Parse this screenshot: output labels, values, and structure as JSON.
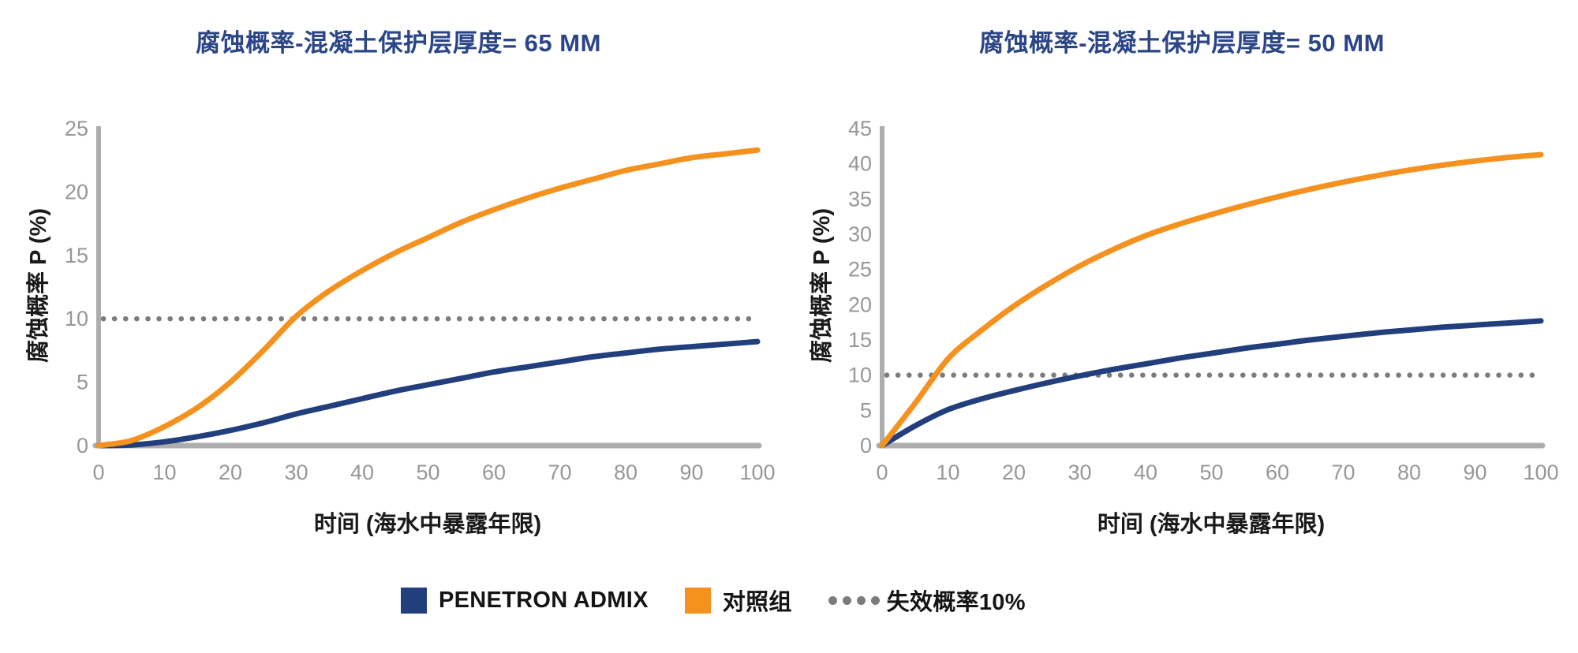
{
  "figure_background": "#ffffff",
  "colors": {
    "title": "#2b4586",
    "axis_line": "#adadad",
    "tick_label": "#979797",
    "axis_title": "#1a1a1a",
    "penetron_navy": "#223f7d",
    "control_orange": "#f5911e",
    "threshold_gray": "#7c7c7c"
  },
  "legend": {
    "items": [
      {
        "label": "PENETRON ADMIX",
        "swatch": "square",
        "color": "#223f7d"
      },
      {
        "label": "对照组",
        "swatch": "square",
        "color": "#f5911e"
      },
      {
        "label": "失效概率10%",
        "swatch": "dotted-line",
        "color": "#7c7c7c"
      }
    ]
  },
  "chart_data": [
    {
      "type": "line",
      "title": "腐蚀概率-混凝土保护层厚度= 65 MM",
      "xlabel": "时间 (海水中暴露年限)",
      "ylabel": "腐蚀概率 P (%)",
      "xlim": [
        0,
        100
      ],
      "ylim": [
        0,
        25
      ],
      "x_ticks": [
        0,
        10,
        20,
        30,
        40,
        50,
        60,
        70,
        80,
        90,
        100
      ],
      "y_ticks": [
        0,
        5,
        10,
        15,
        20,
        25
      ],
      "grid": false,
      "legend_position": "bottom-shared",
      "x": [
        0,
        5,
        10,
        15,
        20,
        25,
        30,
        35,
        40,
        45,
        50,
        55,
        60,
        65,
        70,
        75,
        80,
        85,
        90,
        95,
        100
      ],
      "series": [
        {
          "name": "PENETRON ADMIX",
          "color": "#223f7d",
          "values": [
            0,
            0.05,
            0.3,
            0.7,
            1.2,
            1.8,
            2.5,
            3.1,
            3.7,
            4.3,
            4.8,
            5.3,
            5.8,
            6.2,
            6.6,
            7.0,
            7.3,
            7.6,
            7.8,
            8.0,
            8.2
          ]
        },
        {
          "name": "对照组",
          "color": "#f5911e",
          "values": [
            0,
            0.4,
            1.5,
            3.0,
            5.0,
            7.5,
            10.2,
            12.2,
            13.8,
            15.2,
            16.4,
            17.6,
            18.6,
            19.5,
            20.3,
            21.0,
            21.7,
            22.2,
            22.7,
            23.0,
            23.3
          ]
        }
      ],
      "reference_line": {
        "name": "失效概率10%",
        "value": 10,
        "style": "dotted",
        "color": "#7c7c7c"
      }
    },
    {
      "type": "line",
      "title": "腐蚀概率-混凝土保护层厚度= 50 MM",
      "xlabel": "时间 (海水中暴露年限)",
      "ylabel": "腐蚀概率 P (%)",
      "xlim": [
        0,
        100
      ],
      "ylim": [
        0,
        45
      ],
      "x_ticks": [
        0,
        10,
        20,
        30,
        40,
        50,
        60,
        70,
        80,
        90,
        100
      ],
      "y_ticks": [
        0,
        5,
        10,
        15,
        20,
        25,
        30,
        35,
        40,
        45
      ],
      "grid": false,
      "legend_position": "bottom-shared",
      "x": [
        0,
        5,
        10,
        15,
        20,
        25,
        30,
        35,
        40,
        45,
        50,
        55,
        60,
        65,
        70,
        75,
        80,
        85,
        90,
        95,
        100
      ],
      "series": [
        {
          "name": "PENETRON ADMIX",
          "color": "#223f7d",
          "values": [
            0,
            2.8,
            5.1,
            6.6,
            7.8,
            8.9,
            9.9,
            10.8,
            11.6,
            12.4,
            13.1,
            13.8,
            14.4,
            15.0,
            15.5,
            16.0,
            16.4,
            16.8,
            17.1,
            17.4,
            17.7
          ]
        },
        {
          "name": "对照组",
          "color": "#f5911e",
          "values": [
            0,
            6.0,
            12.3,
            16.3,
            19.8,
            22.8,
            25.5,
            27.8,
            29.8,
            31.4,
            32.8,
            34.1,
            35.3,
            36.4,
            37.4,
            38.3,
            39.1,
            39.8,
            40.4,
            40.9,
            41.3
          ]
        }
      ],
      "reference_line": {
        "name": "失效概率10%",
        "value": 10,
        "style": "dotted",
        "color": "#7c7c7c"
      }
    }
  ]
}
